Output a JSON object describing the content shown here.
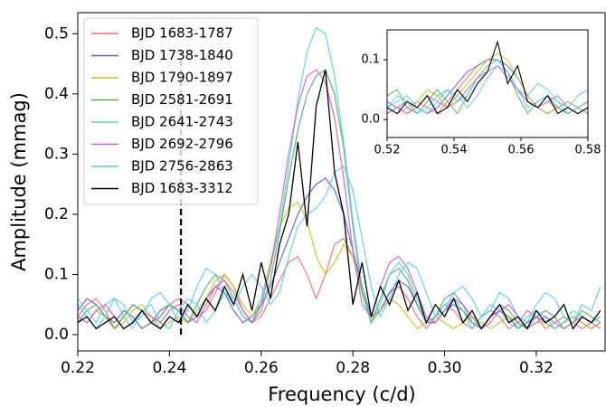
{
  "chart_data": [
    {
      "type": "line",
      "x_label": "Frequency (c/d)",
      "y_label": "Amplitude (mmag)",
      "x": [
        0.22,
        0.222,
        0.224,
        0.226,
        0.228,
        0.23,
        0.232,
        0.234,
        0.236,
        0.238,
        0.24,
        0.242,
        0.244,
        0.246,
        0.248,
        0.25,
        0.252,
        0.254,
        0.256,
        0.258,
        0.26,
        0.262,
        0.264,
        0.266,
        0.268,
        0.27,
        0.272,
        0.274,
        0.276,
        0.278,
        0.28,
        0.282,
        0.284,
        0.286,
        0.288,
        0.29,
        0.292,
        0.294,
        0.296,
        0.298,
        0.3,
        0.302,
        0.304,
        0.306,
        0.308,
        0.31,
        0.312,
        0.314,
        0.316,
        0.318,
        0.32,
        0.322,
        0.324,
        0.326,
        0.328,
        0.33,
        0.332,
        0.334
      ],
      "series": [
        {
          "name": "BJD 1683-1787",
          "color": "#f07070",
          "values": [
            0.03,
            0.05,
            0.06,
            0.04,
            0.01,
            0.03,
            0.05,
            0.04,
            0.02,
            0.03,
            0.05,
            0.06,
            0.05,
            0.03,
            0.04,
            0.07,
            0.1,
            0.08,
            0.04,
            0.02,
            0.03,
            0.06,
            0.09,
            0.12,
            0.13,
            0.1,
            0.06,
            0.1,
            0.15,
            0.16,
            0.13,
            0.07,
            0.02,
            0.04,
            0.07,
            0.08,
            0.06,
            0.03,
            0.01,
            0.03,
            0.05,
            0.04,
            0.02,
            0.01,
            0.03,
            0.04,
            0.03,
            0.01,
            0.02,
            0.04,
            0.03,
            0.01,
            0.02,
            0.03,
            0.02,
            0.01,
            0.02,
            0.03
          ]
        },
        {
          "name": "BJD 1738-1840",
          "color": "#5a5ad8",
          "values": [
            0.04,
            0.06,
            0.05,
            0.03,
            0.02,
            0.04,
            0.03,
            0.01,
            0.02,
            0.04,
            0.05,
            0.04,
            0.02,
            0.03,
            0.06,
            0.08,
            0.07,
            0.04,
            0.02,
            0.03,
            0.05,
            0.08,
            0.12,
            0.16,
            0.2,
            0.23,
            0.25,
            0.26,
            0.24,
            0.2,
            0.14,
            0.08,
            0.03,
            0.04,
            0.07,
            0.09,
            0.08,
            0.05,
            0.02,
            0.02,
            0.04,
            0.05,
            0.04,
            0.02,
            0.01,
            0.03,
            0.04,
            0.03,
            0.01,
            0.02,
            0.03,
            0.02,
            0.01,
            0.02,
            0.03,
            0.02,
            0.01,
            0.02
          ]
        },
        {
          "name": "BJD 1790-1897",
          "color": "#c4c41c",
          "values": [
            0.03,
            0.02,
            0.04,
            0.03,
            0.01,
            0.02,
            0.04,
            0.05,
            0.03,
            0.01,
            0.02,
            0.03,
            0.02,
            0.04,
            0.06,
            0.09,
            0.1,
            0.08,
            0.05,
            0.03,
            0.06,
            0.12,
            0.18,
            0.21,
            0.22,
            0.19,
            0.13,
            0.1,
            0.12,
            0.15,
            0.13,
            0.07,
            0.02,
            0.04,
            0.06,
            0.05,
            0.03,
            0.01,
            0.02,
            0.03,
            0.02,
            0.01,
            0.02,
            0.03,
            0.02,
            0.01,
            0.02,
            0.03,
            0.02,
            0.01,
            0.02,
            0.02,
            0.01,
            0.02,
            0.03,
            0.02,
            0.01,
            0.02
          ]
        },
        {
          "name": "BJD 2581-2691",
          "color": "#5caa5c",
          "values": [
            0.02,
            0.04,
            0.05,
            0.03,
            0.01,
            0.03,
            0.05,
            0.04,
            0.02,
            0.03,
            0.05,
            0.04,
            0.02,
            0.05,
            0.08,
            0.1,
            0.09,
            0.06,
            0.03,
            0.02,
            0.04,
            0.09,
            0.17,
            0.26,
            0.34,
            0.4,
            0.43,
            0.44,
            0.4,
            0.31,
            0.18,
            0.07,
            0.02,
            0.06,
            0.1,
            0.11,
            0.09,
            0.05,
            0.02,
            0.03,
            0.06,
            0.07,
            0.05,
            0.02,
            0.01,
            0.03,
            0.05,
            0.04,
            0.02,
            0.01,
            0.03,
            0.04,
            0.03,
            0.01,
            0.02,
            0.04,
            0.03,
            0.02
          ]
        },
        {
          "name": "BJD 2641-2743",
          "color": "#4fd6dc",
          "values": [
            0.06,
            0.04,
            0.02,
            0.05,
            0.06,
            0.03,
            0.01,
            0.04,
            0.05,
            0.02,
            0.01,
            0.04,
            0.06,
            0.05,
            0.02,
            0.04,
            0.07,
            0.06,
            0.03,
            0.02,
            0.06,
            0.11,
            0.18,
            0.28,
            0.39,
            0.47,
            0.51,
            0.5,
            0.43,
            0.32,
            0.19,
            0.08,
            0.02,
            0.05,
            0.1,
            0.12,
            0.1,
            0.06,
            0.02,
            0.03,
            0.05,
            0.06,
            0.04,
            0.01,
            0.03,
            0.05,
            0.04,
            0.02,
            0.01,
            0.03,
            0.04,
            0.03,
            0.01,
            0.02,
            0.04,
            0.03,
            0.02,
            0.03
          ]
        },
        {
          "name": "BJD 2692-2796",
          "color": "#cc5fcc",
          "values": [
            0.03,
            0.02,
            0.04,
            0.05,
            0.03,
            0.01,
            0.02,
            0.04,
            0.03,
            0.02,
            0.04,
            0.05,
            0.03,
            0.02,
            0.05,
            0.08,
            0.09,
            0.07,
            0.04,
            0.02,
            0.05,
            0.11,
            0.2,
            0.3,
            0.38,
            0.43,
            0.44,
            0.42,
            0.36,
            0.26,
            0.14,
            0.05,
            0.03,
            0.08,
            0.12,
            0.13,
            0.11,
            0.07,
            0.03,
            0.02,
            0.04,
            0.06,
            0.05,
            0.03,
            0.01,
            0.02,
            0.04,
            0.05,
            0.03,
            0.01,
            0.02,
            0.03,
            0.02,
            0.01,
            0.02,
            0.03,
            0.02,
            0.01
          ]
        },
        {
          "name": "BJD 2756-2863",
          "color": "#5cc8ee",
          "values": [
            0.05,
            0.03,
            0.01,
            0.03,
            0.06,
            0.05,
            0.02,
            0.03,
            0.06,
            0.07,
            0.05,
            0.02,
            0.04,
            0.08,
            0.11,
            0.1,
            0.07,
            0.05,
            0.08,
            0.1,
            0.08,
            0.05,
            0.07,
            0.13,
            0.18,
            0.2,
            0.21,
            0.23,
            0.27,
            0.28,
            0.24,
            0.16,
            0.08,
            0.03,
            0.06,
            0.1,
            0.12,
            0.11,
            0.07,
            0.03,
            0.04,
            0.07,
            0.08,
            0.06,
            0.03,
            0.04,
            0.07,
            0.06,
            0.03,
            0.02,
            0.05,
            0.07,
            0.06,
            0.03,
            0.02,
            0.05,
            0.04,
            0.08
          ]
        },
        {
          "name": "BJD 1683-3312",
          "color": "#000000",
          "values": [
            0.02,
            0.03,
            0.01,
            0.02,
            0.03,
            0.01,
            0.02,
            0.04,
            0.02,
            0.01,
            0.03,
            0.02,
            0.05,
            0.03,
            0.06,
            0.04,
            0.08,
            0.05,
            0.1,
            0.04,
            0.12,
            0.06,
            0.15,
            0.2,
            0.32,
            0.18,
            0.38,
            0.44,
            0.27,
            0.2,
            0.05,
            0.12,
            0.03,
            0.08,
            0.05,
            0.09,
            0.04,
            0.07,
            0.02,
            0.05,
            0.03,
            0.06,
            0.02,
            0.04,
            0.01,
            0.03,
            0.05,
            0.02,
            0.03,
            0.01,
            0.04,
            0.02,
            0.03,
            0.05,
            0.01,
            0.03,
            0.02,
            0.04
          ]
        }
      ],
      "reference_line": {
        "x": 0.2425,
        "ymax": 0.48,
        "color": "#000000"
      },
      "xlim": [
        0.22,
        0.335
      ],
      "ylim": [
        -0.027,
        0.535
      ],
      "xticks": [
        0.22,
        0.24,
        0.26,
        0.28,
        {
          "value": 0.3,
          "label": "0.30"
        },
        0.32
      ],
      "yticks": [
        {
          "value": 0,
          "label": "0.0"
        },
        0.1,
        0.2,
        0.3,
        0.4,
        0.5
      ],
      "legend": "upper left"
    },
    {
      "type": "line",
      "x": [
        0.52,
        0.523,
        0.526,
        0.529,
        0.532,
        0.535,
        0.538,
        0.541,
        0.544,
        0.547,
        0.55,
        0.553,
        0.556,
        0.559,
        0.562,
        0.565,
        0.568,
        0.571,
        0.574,
        0.577,
        0.58
      ],
      "series": [
        {
          "color": "#f07070",
          "values": [
            0.02,
            0.01,
            0.02,
            0.03,
            0.02,
            0.01,
            0.03,
            0.05,
            0.07,
            0.09,
            0.1,
            0.1,
            0.08,
            0.05,
            0.03,
            0.02,
            0.03,
            0.02,
            0.01,
            0.02,
            0.03
          ]
        },
        {
          "color": "#5a5ad8",
          "values": [
            0.01,
            0.02,
            0.03,
            0.02,
            0.01,
            0.02,
            0.04,
            0.06,
            0.08,
            0.09,
            0.1,
            0.1,
            0.09,
            0.07,
            0.04,
            0.02,
            0.01,
            0.02,
            0.03,
            0.02,
            0.01
          ]
        },
        {
          "color": "#c4c41c",
          "values": [
            0.03,
            0.02,
            0.01,
            0.03,
            0.05,
            0.04,
            0.02,
            0.04,
            0.06,
            0.08,
            0.1,
            0.11,
            0.1,
            0.07,
            0.04,
            0.02,
            0.01,
            0.02,
            0.03,
            0.02,
            0.01
          ]
        },
        {
          "color": "#5caa5c",
          "values": [
            0.04,
            0.05,
            0.02,
            0.01,
            0.03,
            0.05,
            0.03,
            0.01,
            0.04,
            0.07,
            0.09,
            0.1,
            0.08,
            0.04,
            0.01,
            0.03,
            0.04,
            0.02,
            0.01,
            0.02,
            0.03
          ]
        },
        {
          "color": "#4fd6dc",
          "values": [
            0.02,
            0.04,
            0.03,
            0.01,
            0.02,
            0.04,
            0.05,
            0.03,
            0.04,
            0.07,
            0.09,
            0.1,
            0.08,
            0.05,
            0.02,
            0.03,
            0.04,
            0.03,
            0.01,
            0.02,
            0.03
          ]
        },
        {
          "color": "#cc5fcc",
          "values": [
            0.03,
            0.02,
            0.01,
            0.02,
            0.04,
            0.03,
            0.02,
            0.03,
            0.05,
            0.07,
            0.08,
            0.09,
            0.07,
            0.05,
            0.03,
            0.02,
            0.03,
            0.04,
            0.02,
            0.01,
            0.02
          ]
        },
        {
          "color": "#5cc8ee",
          "values": [
            0.02,
            0.03,
            0.04,
            0.02,
            0.01,
            0.03,
            0.05,
            0.04,
            0.02,
            0.04,
            0.07,
            0.09,
            0.08,
            0.05,
            0.04,
            0.06,
            0.05,
            0.03,
            0.02,
            0.04,
            0.05
          ]
        },
        {
          "color": "#000000",
          "values": [
            0.02,
            0.01,
            0.03,
            0.02,
            0.04,
            0.01,
            0.02,
            0.05,
            0.03,
            0.06,
            0.08,
            0.13,
            0.06,
            0.09,
            0.03,
            0.02,
            0.04,
            0.01,
            0.02,
            0.01,
            0.02
          ]
        }
      ],
      "xlim": [
        0.52,
        0.58
      ],
      "ylim": [
        -0.03,
        0.15
      ],
      "xticks": [
        0.52,
        0.54,
        0.56,
        0.58
      ],
      "yticks": [
        {
          "value": 0,
          "label": "0.0"
        },
        0.1
      ]
    }
  ]
}
